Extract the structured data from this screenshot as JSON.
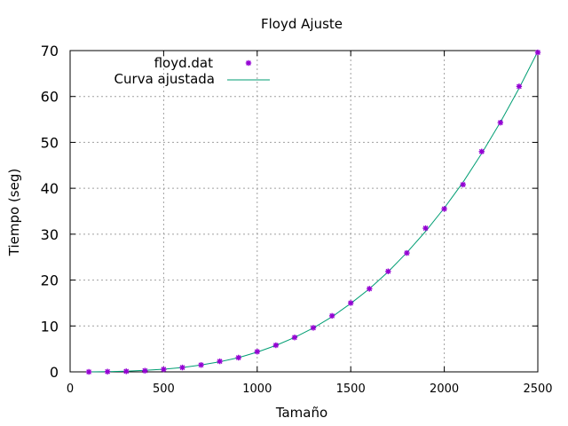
{
  "chart_data": {
    "type": "scatter",
    "title": "Floyd Ajuste",
    "xlabel": "Tamaño",
    "ylabel": "Tiempo (seg)",
    "xlim": [
      0,
      2500
    ],
    "ylim": [
      0,
      70
    ],
    "xticks": [
      0,
      500,
      1000,
      1500,
      2000,
      2500
    ],
    "yticks": [
      0,
      10,
      20,
      30,
      40,
      50,
      60,
      70
    ],
    "grid": true,
    "legend_position": "top-left",
    "series": [
      {
        "name": "floyd.dat",
        "kind": "points",
        "color": "#9400d3",
        "x": [
          100,
          200,
          300,
          400,
          500,
          600,
          700,
          800,
          900,
          1000,
          1100,
          1200,
          1300,
          1400,
          1500,
          1600,
          1700,
          1800,
          1900,
          2000,
          2100,
          2200,
          2300,
          2400,
          2500
        ],
        "y": [
          0.0,
          0.05,
          0.12,
          0.25,
          0.55,
          0.95,
          1.5,
          2.3,
          3.1,
          4.4,
          5.8,
          7.5,
          9.6,
          12.2,
          15.0,
          18.1,
          21.9,
          25.9,
          31.3,
          35.5,
          40.8,
          48.0,
          54.3,
          62.2,
          69.6
        ]
      },
      {
        "name": "Curva ajustada",
        "kind": "line",
        "color": "#009e73",
        "x": [
          100,
          200,
          300,
          400,
          500,
          600,
          700,
          800,
          900,
          1000,
          1100,
          1200,
          1300,
          1400,
          1500,
          1600,
          1700,
          1800,
          1900,
          2000,
          2100,
          2200,
          2300,
          2400,
          2500
        ],
        "y": [
          0.0,
          0.04,
          0.15,
          0.33,
          0.58,
          0.95,
          1.5,
          2.2,
          3.1,
          4.3,
          5.75,
          7.5,
          9.55,
          12.0,
          14.9,
          18.1,
          21.8,
          26.0,
          30.6,
          35.7,
          41.3,
          47.6,
          54.4,
          61.8,
          69.8
        ]
      }
    ]
  }
}
